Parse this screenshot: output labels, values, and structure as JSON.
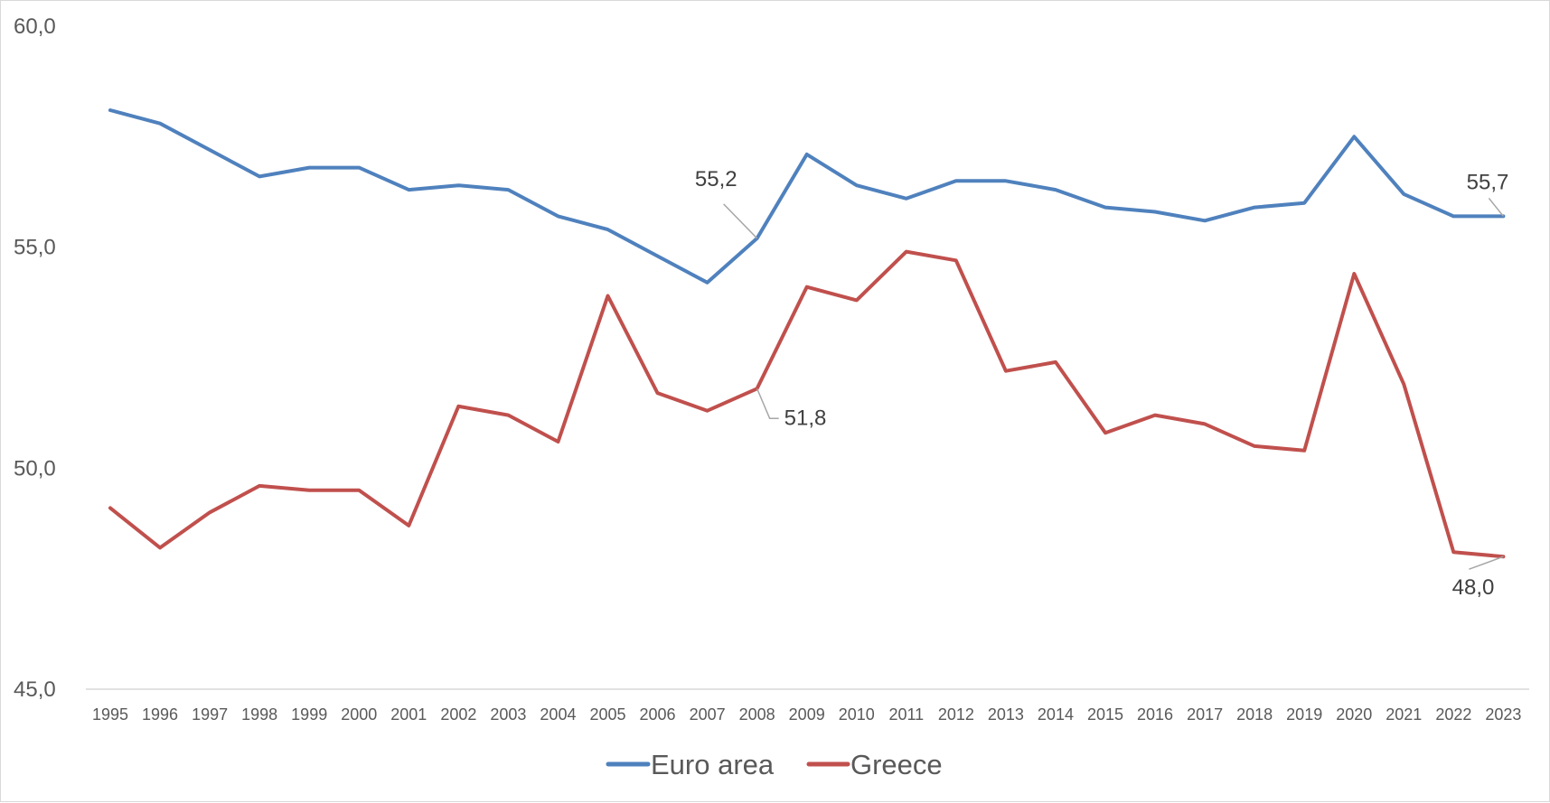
{
  "chart_data": {
    "type": "line",
    "title": "",
    "xlabel": "",
    "ylabel": "",
    "ylim": [
      45,
      60
    ],
    "yticks": [
      45,
      50,
      55,
      60
    ],
    "ytick_labels": [
      "45,0",
      "50,0",
      "55,0",
      "60,0"
    ],
    "grid": "baseline only",
    "legend_position": "bottom",
    "categories": [
      "1995",
      "1996",
      "1997",
      "1998",
      "1999",
      "2000",
      "2001",
      "2002",
      "2003",
      "2004",
      "2005",
      "2006",
      "2007",
      "2008",
      "2009",
      "2010",
      "2011",
      "2012",
      "2013",
      "2014",
      "2015",
      "2016",
      "2017",
      "2018",
      "2019",
      "2020",
      "2021",
      "2022",
      "2023"
    ],
    "series": [
      {
        "name": "Euro area",
        "color": "#4f81bd",
        "values": [
          58.1,
          57.8,
          57.2,
          56.6,
          56.8,
          56.8,
          56.3,
          56.4,
          56.3,
          55.7,
          55.4,
          54.8,
          54.2,
          55.2,
          57.1,
          56.4,
          56.1,
          56.5,
          56.5,
          56.3,
          55.9,
          55.8,
          55.6,
          55.9,
          56.0,
          57.5,
          56.2,
          55.7,
          55.7
        ]
      },
      {
        "name": "Greece",
        "color": "#c0504d",
        "values": [
          49.1,
          48.2,
          49.0,
          49.6,
          49.5,
          49.5,
          48.7,
          51.4,
          51.2,
          50.6,
          53.9,
          51.7,
          51.3,
          51.8,
          54.1,
          53.8,
          54.9,
          54.7,
          52.2,
          52.4,
          50.8,
          51.2,
          51.0,
          50.5,
          50.4,
          54.4,
          51.9,
          48.1,
          48.0
        ]
      }
    ],
    "annotations": [
      {
        "series": "Euro area",
        "category": "2008",
        "text": "55,2"
      },
      {
        "series": "Euro area",
        "category": "2023",
        "text": "55,7"
      },
      {
        "series": "Greece",
        "category": "2008",
        "text": "51,8"
      },
      {
        "series": "Greece",
        "category": "2023",
        "text": "48,0"
      }
    ]
  }
}
